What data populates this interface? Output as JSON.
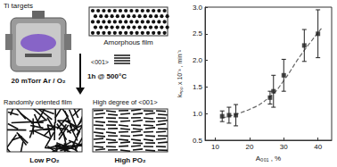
{
  "diagram": {
    "ti_targets": "Ti targets",
    "amorphous": "Amorphous film",
    "gas": "20 mTorr Ar / O₂",
    "anneal": "1h @ 500°C",
    "orientation": "<001>",
    "random_film": "Randomly oriented film",
    "high_degree": "High degree of <001>",
    "low_po2": "Low PO₂",
    "high_po2": "High PO₂"
  },
  "chart_data": {
    "type": "scatter",
    "x_label": "A₀₀₁ , %",
    "y_label": "kₐₚₚ x 10⁻³ , min⁻¹",
    "xlim": [
      7,
      44
    ],
    "xticks": [
      10,
      20,
      30,
      40
    ],
    "ylim": [
      0.5,
      3.0
    ],
    "yticks": [
      0.5,
      {
        "value": 1,
        "label": "1.0"
      },
      1.5,
      {
        "value": 2,
        "label": "2.0"
      },
      2.5,
      {
        "value": 3,
        "label": "3.0"
      }
    ],
    "grid": false,
    "series": [
      {
        "type": "scatter",
        "marker": "square",
        "color": "#222222",
        "x": [
          12,
          14,
          16,
          26,
          27,
          30,
          36,
          40
        ],
        "values": [
          0.95,
          0.97,
          0.97,
          1.3,
          1.42,
          1.72,
          2.28,
          2.5
        ],
        "errors": [
          0.1,
          0.15,
          0.2,
          0.12,
          0.3,
          0.3,
          0.3,
          0.45
        ]
      },
      {
        "type": "line",
        "line_style": "dashed",
        "color": "#666666",
        "x": [
          12,
          20,
          26,
          30,
          35,
          41
        ],
        "values": [
          0.92,
          1.08,
          1.32,
          1.62,
          2.1,
          2.6
        ]
      }
    ]
  }
}
